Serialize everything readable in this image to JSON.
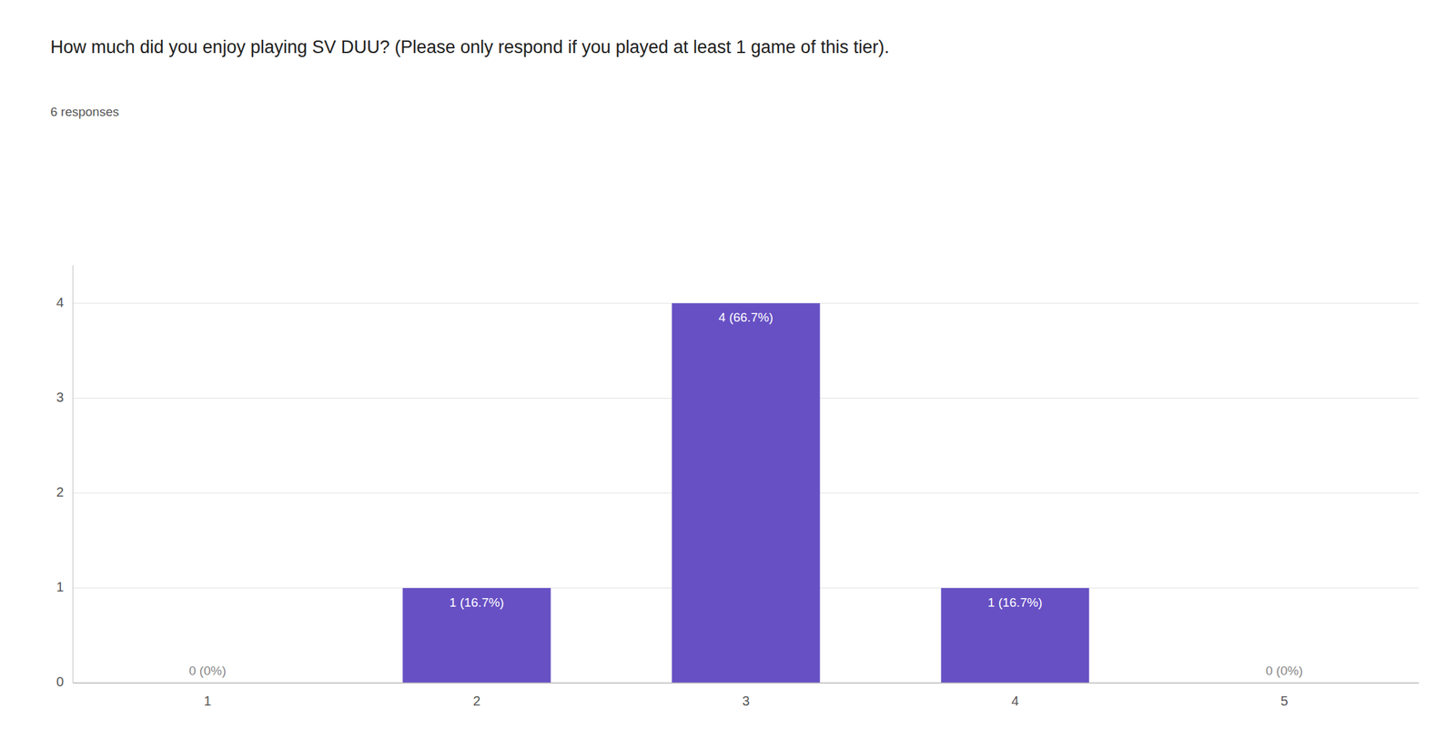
{
  "chart_data": {
    "type": "bar",
    "title": "How much did you enjoy playing SV DUU? (Please only respond if you played at least 1 game of this tier).",
    "subtitle": "6 responses",
    "categories": [
      1,
      2,
      3,
      4,
      5
    ],
    "values": [
      0,
      1,
      4,
      1,
      0
    ],
    "value_labels": [
      "0 (0%)",
      "1 (16.7%)",
      "4 (66.7%)",
      "1 (16.7%)",
      "0 (0%)"
    ],
    "data_labels": true,
    "color": "#6750c4",
    "ylim": [
      0,
      4.4
    ],
    "yticks": [
      0,
      1,
      2,
      3,
      4
    ],
    "grid": true
  }
}
